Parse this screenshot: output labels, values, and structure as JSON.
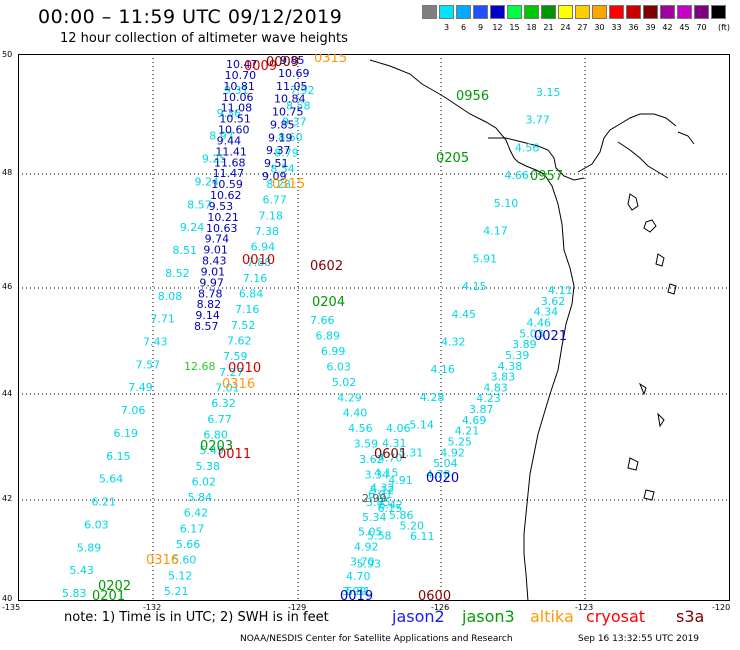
{
  "title": "00:00 – 11:59 UTC 09/12/2019",
  "subtitle": "12 hour collection of altimeter wave heights",
  "color_scale": {
    "unit": "(ft)",
    "colors": [
      "#7f7f7f",
      "#00e5ff",
      "#00aaff",
      "#2050ff",
      "#0000c8",
      "#00ff44",
      "#00c800",
      "#009600",
      "#ffff00",
      "#ffcc00",
      "#ffa500",
      "#ff0000",
      "#c80000",
      "#800000",
      "#a000a0",
      "#c800c8",
      "#7f007f",
      "#000000"
    ],
    "labels": [
      "3",
      "6",
      "9",
      "12",
      "15",
      "18",
      "21",
      "24",
      "27",
      "30",
      "33",
      "36",
      "39",
      "42",
      "45",
      "70"
    ]
  },
  "axes": {
    "lat_labels": [
      "50",
      "48",
      "46",
      "44",
      "42",
      "40"
    ],
    "lon_labels": [
      "-135",
      "-132",
      "-129",
      "-126",
      "-123",
      "-120"
    ]
  },
  "tracks": [
    {
      "color": "#00d7e6",
      "values": [
        "5.83",
        "5.43",
        "5.89",
        "6.03",
        "6.21",
        "5.64",
        "6.15",
        "6.19",
        "7.06",
        "7.49",
        "7.57",
        "7.43",
        "7.71",
        "8.08",
        "8.52",
        "8.51",
        "9.24",
        "8.57",
        "9.24",
        "9.25",
        "8.97",
        "9.36",
        "9.31"
      ]
    },
    {
      "color": "#00d7e6",
      "values": [
        "5.21",
        "5.12",
        "5.60",
        "5.66",
        "6.17",
        "6.42",
        "5.84",
        "6.02",
        "5.38",
        "5.49",
        "6.80",
        "6.77",
        "6.32",
        "7.01",
        "7.27",
        "7.59",
        "7.62",
        "7.52",
        "7.16",
        "6.84",
        "7.16",
        "7.88",
        "6.94",
        "7.38",
        "7.18",
        "6.77",
        "8.28",
        "8.54",
        "8.79",
        "8.60",
        "9.37",
        "8.58",
        "7.92"
      ]
    },
    {
      "color": "#00d7e6",
      "values": [
        "5.31",
        "5.93",
        "5.58",
        "6.15",
        "4.91",
        "5.31",
        "5.14",
        "4.28",
        "4.16",
        "4.32",
        "4.45",
        "4.15",
        "5.91",
        "4.17",
        "5.10",
        "4.66",
        "4.56",
        "3.77",
        "3.15"
      ]
    },
    {
      "color": "#00d7e6",
      "values": [
        "3.99",
        "4.70",
        "3.70",
        "4.92",
        "5.05",
        "5.34",
        "3.85",
        "4.32",
        "4.15",
        "4.70",
        "4.31",
        "4.06"
      ]
    },
    {
      "color": "#00d7e6",
      "values": [
        "7.66",
        "6.89",
        "6.99",
        "6.03",
        "5.02",
        "4.29",
        "4.40",
        "4.56",
        "3.59",
        "3.62",
        "3.34",
        "5.12"
      ]
    },
    {
      "color": "#00d7e6",
      "values": [
        "4.78",
        "5.04",
        "4.92",
        "5.25",
        "4.21",
        "4.69",
        "3.87",
        "4.23",
        "4.83",
        "3.83",
        "4.38",
        "5.39",
        "3.89",
        "5.03",
        "4.46",
        "4.34",
        "3.62",
        "4.11"
      ]
    },
    {
      "color": "#00d7e6",
      "values": [
        "6.01",
        "6.42",
        "5.86",
        "5.20",
        "6.11"
      ]
    },
    {
      "color": "#0000b4",
      "values": [
        "10.47",
        "10.70",
        "10.81",
        "10.06",
        "11.08",
        "10.51",
        "10.60",
        "9.44",
        "11.41",
        "11.68",
        "11.47",
        "10.59",
        "10.62",
        "9.53",
        "10.21",
        "10.63",
        "9.74",
        "9.01",
        "8.43",
        "9.01",
        "9.97",
        "8.78",
        "8.82",
        "9.14",
        "8.57"
      ]
    },
    {
      "color": "#0000b4",
      "values": [
        "9.85",
        "10.69",
        "11.05",
        "10.84",
        "10.75",
        "9.85",
        "9.19",
        "9.37",
        "9.51",
        "9.09"
      ]
    },
    {
      "color": "#2ac82a",
      "values": [
        "12.68"
      ]
    },
    {
      "color": "#555555",
      "values": [
        "2.99"
      ]
    }
  ],
  "pass_labels": [
    {
      "text": "0315",
      "color": "#ff9900"
    },
    {
      "text": "0009",
      "color": "#cc0000"
    },
    {
      "text": "0009",
      "color": "#880000"
    },
    {
      "text": "0315",
      "color": "#ff9900"
    },
    {
      "text": "0010",
      "color": "#cc0000"
    },
    {
      "text": "0602",
      "color": "#880000"
    },
    {
      "text": "0204",
      "color": "#009900"
    },
    {
      "text": "0010",
      "color": "#cc0000"
    },
    {
      "text": "0316",
      "color": "#ff9900"
    },
    {
      "text": "0203",
      "color": "#009900"
    },
    {
      "text": "0011",
      "color": "#cc0000"
    },
    {
      "text": "0601",
      "color": "#880000"
    },
    {
      "text": "0020",
      "color": "#0000cc"
    },
    {
      "text": "0316",
      "color": "#ff9900"
    },
    {
      "text": "0202",
      "color": "#009900"
    },
    {
      "text": "0201",
      "color": "#009900"
    },
    {
      "text": "0019",
      "color": "#0000cc"
    },
    {
      "text": "0600",
      "color": "#880000"
    },
    {
      "text": "0956",
      "color": "#009900"
    },
    {
      "text": "0205",
      "color": "#009900"
    },
    {
      "text": "0957",
      "color": "#009900"
    },
    {
      "text": "0021",
      "color": "#0000cc"
    }
  ],
  "footer": {
    "note": "note:  1) Time is in UTC;  2) SWH is in feet",
    "satellites": [
      {
        "name": "jason2",
        "color": "#1a1aff"
      },
      {
        "name": "jason3",
        "color": "#00a000"
      },
      {
        "name": "altika",
        "color": "#ff9900"
      },
      {
        "name": "cryosat",
        "color": "#ff0000"
      },
      {
        "name": "s3a",
        "color": "#800000"
      }
    ],
    "credit": "NOAA/NESDIS Center for Satellite Applications and Research",
    "timestamp": "Sep 16 13:32:55 UTC 2019"
  }
}
